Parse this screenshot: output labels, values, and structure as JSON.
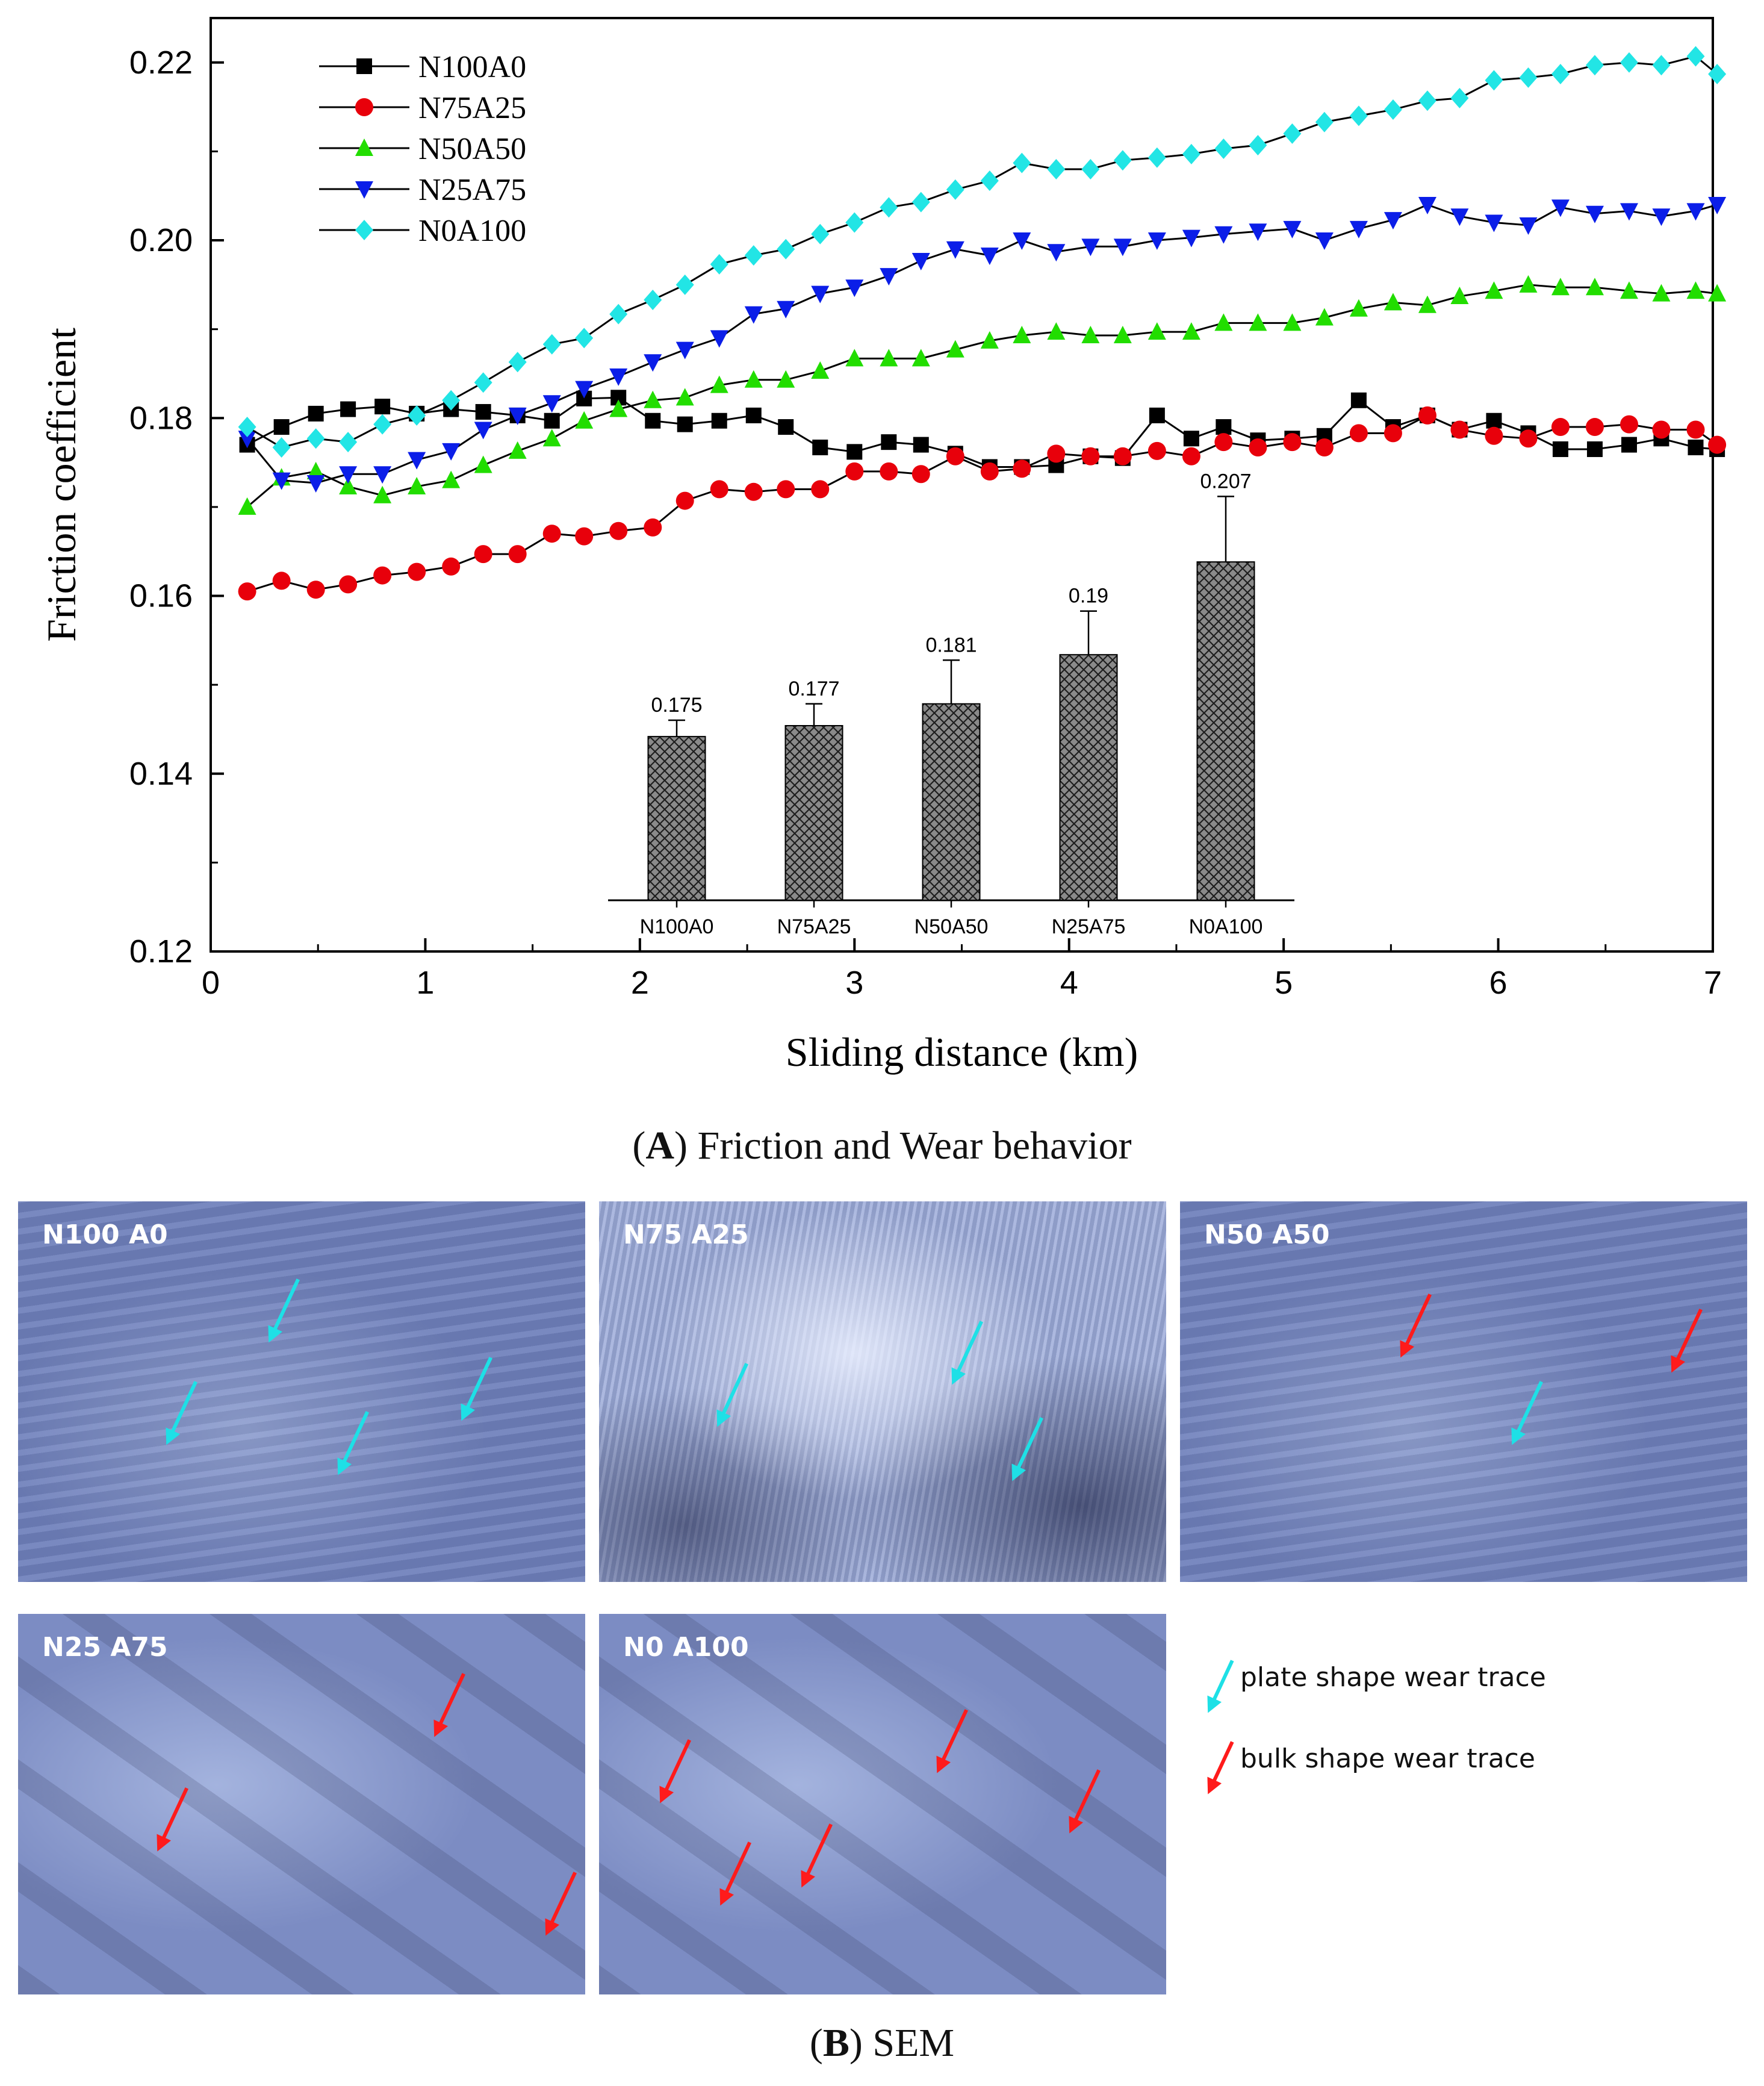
{
  "chart_data": {
    "type": "line",
    "xlabel": "Sliding distance (km)",
    "ylabel": "Friction coefficient",
    "xlim": [
      0,
      7
    ],
    "ylim": [
      0.12,
      0.225
    ],
    "xticks": [
      "0",
      "1",
      "2",
      "3",
      "4",
      "5",
      "6",
      "7"
    ],
    "yticks": [
      "0.12",
      "0.14",
      "0.16",
      "0.18",
      "0.20",
      "0.22"
    ],
    "legend_position": "top-left",
    "x": [
      0.17,
      0.33,
      0.49,
      0.64,
      0.8,
      0.96,
      1.12,
      1.27,
      1.43,
      1.59,
      1.74,
      1.9,
      2.06,
      2.21,
      2.37,
      2.53,
      2.68,
      2.84,
      3.0,
      3.16,
      3.31,
      3.47,
      3.63,
      3.78,
      3.94,
      4.1,
      4.25,
      4.41,
      4.57,
      4.72,
      4.88,
      5.04,
      5.19,
      5.35,
      5.51,
      5.67,
      5.82,
      5.98,
      6.14,
      6.29,
      6.45,
      6.61,
      6.76,
      6.92,
      7.02
    ],
    "series": [
      {
        "name": "N100A0",
        "color": "#000000",
        "marker": "square",
        "values": [
          0.177,
          0.179,
          0.1805,
          0.181,
          0.1813,
          0.1805,
          0.181,
          0.1807,
          0.1803,
          0.1797,
          0.1822,
          0.1823,
          0.1797,
          0.1793,
          0.1797,
          0.1803,
          0.179,
          0.1767,
          0.1762,
          0.1773,
          0.177,
          0.176,
          0.1745,
          0.1745,
          0.1747,
          0.1757,
          0.1755,
          0.1803,
          0.1777,
          0.179,
          0.1775,
          0.1777,
          0.178,
          0.182,
          0.179,
          0.1803,
          0.1787,
          0.1797,
          0.1783,
          0.1765,
          0.1765,
          0.177,
          0.1777,
          0.1767,
          0.1765
        ]
      },
      {
        "name": "N75A25",
        "color": "#e8000b",
        "marker": "circle",
        "values": [
          0.1605,
          0.1617,
          0.1607,
          0.1613,
          0.1623,
          0.1627,
          0.1633,
          0.1647,
          0.1647,
          0.167,
          0.1667,
          0.1673,
          0.1677,
          0.1707,
          0.172,
          0.1717,
          0.172,
          0.172,
          0.174,
          0.174,
          0.1737,
          0.1757,
          0.174,
          0.1743,
          0.176,
          0.1757,
          0.1757,
          0.1763,
          0.1757,
          0.1773,
          0.1767,
          0.1773,
          0.1767,
          0.1783,
          0.1783,
          0.1803,
          0.1787,
          0.178,
          0.1777,
          0.179,
          0.179,
          0.1793,
          0.1787,
          0.1787,
          0.177
        ]
      },
      {
        "name": "N50A50",
        "color": "#22dd00",
        "marker": "triangle-up",
        "values": [
          0.17,
          0.1733,
          0.174,
          0.1723,
          0.1713,
          0.1723,
          0.173,
          0.1747,
          0.1763,
          0.1777,
          0.1797,
          0.181,
          0.182,
          0.1823,
          0.1837,
          0.1843,
          0.1843,
          0.1853,
          0.1867,
          0.1867,
          0.1867,
          0.1877,
          0.1887,
          0.1893,
          0.1897,
          0.1893,
          0.1893,
          0.1897,
          0.1897,
          0.1907,
          0.1907,
          0.1907,
          0.1913,
          0.1923,
          0.193,
          0.1927,
          0.1937,
          0.1943,
          0.195,
          0.1947,
          0.1947,
          0.1943,
          0.194,
          0.1943,
          0.194
        ]
      },
      {
        "name": "N25A75",
        "color": "#0b1ee8",
        "marker": "triangle-down",
        "values": [
          0.1777,
          0.173,
          0.1727,
          0.1737,
          0.1737,
          0.1753,
          0.1763,
          0.1787,
          0.1803,
          0.1817,
          0.1833,
          0.1847,
          0.1863,
          0.1877,
          0.189,
          0.1917,
          0.1923,
          0.194,
          0.1947,
          0.196,
          0.1977,
          0.199,
          0.1983,
          0.2,
          0.1987,
          0.1993,
          0.1993,
          0.2,
          0.2003,
          0.2007,
          0.201,
          0.2013,
          0.2,
          0.2013,
          0.2023,
          0.204,
          0.2027,
          0.202,
          0.2017,
          0.2037,
          0.203,
          0.2033,
          0.2027,
          0.2033,
          0.204
        ]
      },
      {
        "name": "N0A100",
        "color": "#22e5e5",
        "marker": "diamond",
        "values": [
          0.179,
          0.1767,
          0.1777,
          0.1773,
          0.1793,
          0.1803,
          0.182,
          0.184,
          0.1863,
          0.1883,
          0.189,
          0.1917,
          0.1933,
          0.195,
          0.1973,
          0.1983,
          0.199,
          0.2007,
          0.202,
          0.2037,
          0.2043,
          0.2057,
          0.2067,
          0.2087,
          0.208,
          0.208,
          0.209,
          0.2093,
          0.2097,
          0.2103,
          0.2107,
          0.212,
          0.2133,
          0.214,
          0.2147,
          0.2157,
          0.216,
          0.218,
          0.2183,
          0.2187,
          0.2197,
          0.22,
          0.2197,
          0.2207,
          0.2187
        ]
      }
    ],
    "inset": {
      "type": "bar",
      "categories": [
        "N100A0",
        "N75A25",
        "N50A50",
        "N25A75",
        "N0A100"
      ],
      "values": [
        0.175,
        0.177,
        0.181,
        0.19,
        0.207
      ],
      "errors": [
        0.003,
        0.004,
        0.008,
        0.008,
        0.012
      ],
      "value_labels": [
        "0.175",
        "0.177",
        "0.181",
        "0.19",
        "0.207"
      ],
      "ylim": [
        0.145,
        0.225
      ]
    }
  },
  "caption_a": {
    "letter": "A",
    "text": "Friction and Wear behavior"
  },
  "caption_b": {
    "letter": "B",
    "text": "SEM"
  },
  "sem_panels": [
    {
      "label": "N100 A0"
    },
    {
      "label": "N75 A25"
    },
    {
      "label": "N50 A50"
    },
    {
      "label": "N25 A75"
    },
    {
      "label": "N0 A100"
    }
  ],
  "sem_legend": {
    "plate": {
      "text": "plate shape wear trace",
      "color": "#1ee0e6"
    },
    "bulk": {
      "text": "bulk shape wear trace",
      "color": "#ff1b1b"
    }
  }
}
